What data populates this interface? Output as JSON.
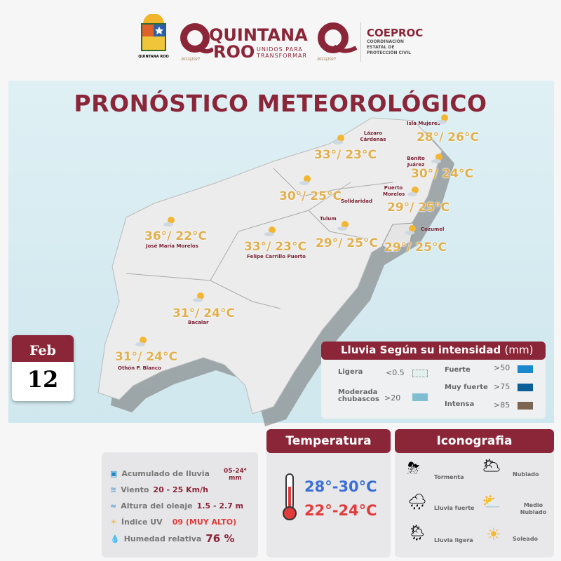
{
  "header": {
    "logo1_text": "QUINTANA ROO",
    "logo2_line1": "QUINTANA",
    "logo2_line2": "ROO",
    "logo2_slogan1": "UNIDOS PARA",
    "logo2_slogan2": "TRANSFORMAR",
    "period": "2022|2027",
    "coeproc": "COEPROC",
    "coeproc_sub1": "COORDINACIÓN",
    "coeproc_sub2": "ESTATAL DE",
    "coeproc_sub3": "PROTECCIÓN CIVIL"
  },
  "title": "PRONÓSTICO METEOROLÓGICO",
  "date": {
    "month": "Feb",
    "day": "12"
  },
  "cities": [
    {
      "name": "Isla Mujeres",
      "temp": "28°/ 26°C"
    },
    {
      "name": "Lázaro Cárdenas",
      "temp": "33°/ 23°C"
    },
    {
      "name": "Benito Juárez",
      "temp": "30°/ 24°C"
    },
    {
      "name": "",
      "temp": "30°/ 25°C"
    },
    {
      "name": "Solidaridad",
      "temp": ""
    },
    {
      "name": "Puerto Morelos",
      "temp": "29°/ 25°C"
    },
    {
      "name": "Tulum",
      "temp": "29°/ 25°C"
    },
    {
      "name": "Cozumel",
      "temp": "29°/ 25°C"
    },
    {
      "name": "José María Morelos",
      "temp": "36°/ 22°C"
    },
    {
      "name": "Felipe Carrillo Puerto",
      "temp": "33°/ 23°C"
    },
    {
      "name": "Bacalar",
      "temp": "31°/ 24°C"
    },
    {
      "name": "Othón P. Blanco",
      "temp": "31°/ 24°C"
    }
  ],
  "legend": {
    "title": "Lluvia Según su intensidad",
    "unit": "(mm)",
    "items": [
      {
        "label": "Ligera",
        "value": "<0.5",
        "color": "#e3f1ec"
      },
      {
        "label": "Moderada chubascos",
        "value": ">20",
        "color": "#7fbdd0"
      },
      {
        "label": "Fuerte",
        "value": ">50",
        "color": "#1a88cc"
      },
      {
        "label": "Muy fuerte",
        "value": ">75",
        "color": "#0d5f99"
      },
      {
        "label": "Intensa",
        "value": ">85",
        "color": "#7d6450"
      }
    ]
  },
  "info": {
    "rain_label": "Acumulado de lluvia",
    "rain_value": "05-24⁴",
    "rain_unit": "mm",
    "wind_label": "Viento",
    "wind_value": "20 - 25 Km/h",
    "wave_label": "Altura del oleaje",
    "wave_value": "1.5 - 2.7 m",
    "uv_label": "Índice UV",
    "uv_value": "09 (MUY ALTO)",
    "hum_label": "Humedad relativa",
    "hum_value": "76 %"
  },
  "temperature": {
    "title": "Temperatura",
    "max": "28°-30°C",
    "min": "22°-24°C"
  },
  "iconography": {
    "title": "Iconografia",
    "items": [
      "Tormenta",
      "Nublado",
      "Lluvia fuerte",
      "Medio Nublado",
      "Lluvia ligera",
      "Soleado"
    ]
  },
  "colors": {
    "brand": "#8b2639",
    "temp": "#e0b04e",
    "max_temp": "#3b6fd6",
    "min_temp": "#e23b3b"
  }
}
